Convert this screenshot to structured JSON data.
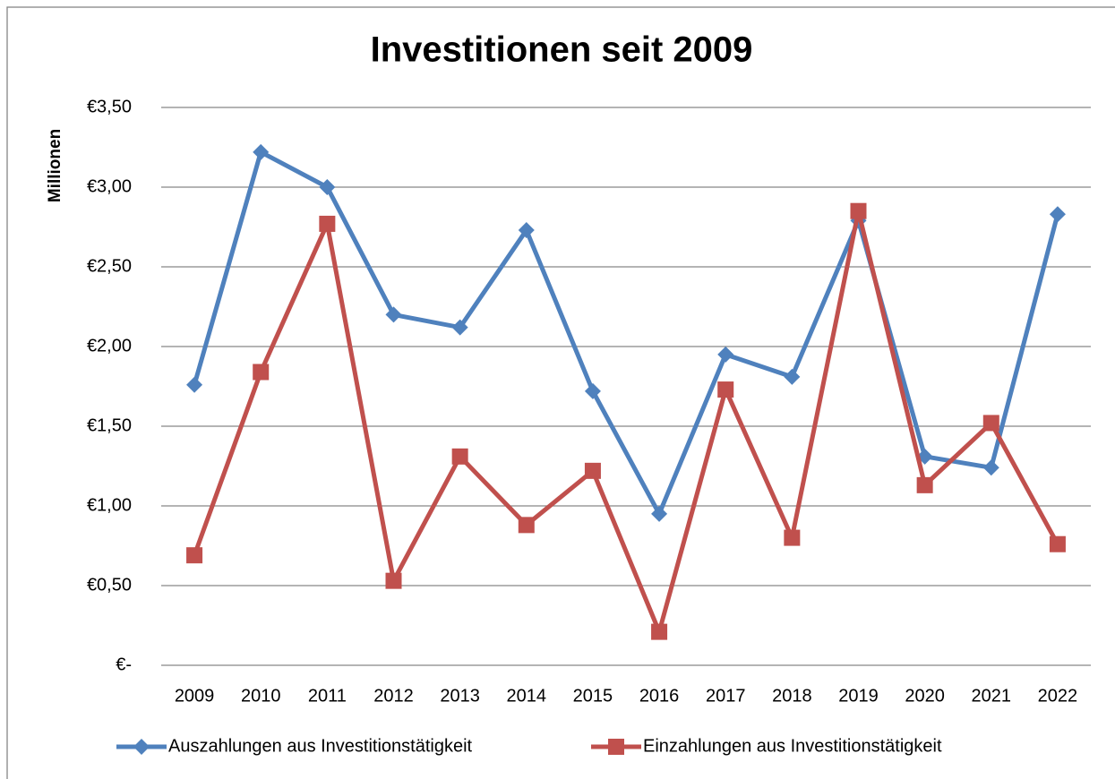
{
  "chart_data": {
    "type": "line",
    "title": "Investitionen seit 2009",
    "y_label": "Millionen",
    "categories": [
      "2009",
      "2010",
      "2011",
      "2012",
      "2013",
      "2014",
      "2015",
      "2016",
      "2017",
      "2018",
      "2019",
      "2020",
      "2021",
      "2022"
    ],
    "series": [
      {
        "name": "Auszahlungen aus Investitionstätigkeit",
        "color": "#4f81bd",
        "marker": "diamond",
        "values": [
          1.76,
          3.22,
          3.0,
          2.2,
          2.12,
          2.73,
          1.72,
          0.95,
          1.95,
          1.81,
          2.79,
          1.31,
          1.24,
          2.83
        ]
      },
      {
        "name": "Einzahlungen aus Investitionstätigkeit",
        "color": "#c0504d",
        "marker": "square",
        "values": [
          0.69,
          1.84,
          2.77,
          0.53,
          1.31,
          0.88,
          1.22,
          0.21,
          1.73,
          0.8,
          2.85,
          1.13,
          1.52,
          0.76
        ]
      }
    ],
    "ylim": [
      0,
      3.5
    ],
    "yticks": [
      {
        "value": 0,
        "label": "€-"
      },
      {
        "value": 0.5,
        "label": "€0,50"
      },
      {
        "value": 1,
        "label": "€1,00"
      },
      {
        "value": 1.5,
        "label": "€1,50"
      },
      {
        "value": 2,
        "label": "€2,00"
      },
      {
        "value": 2.5,
        "label": "€2,50"
      },
      {
        "value": 3,
        "label": "€3,00"
      },
      {
        "value": 3.5,
        "label": "€3,50"
      }
    ],
    "grid": true,
    "legend": "bottom"
  }
}
